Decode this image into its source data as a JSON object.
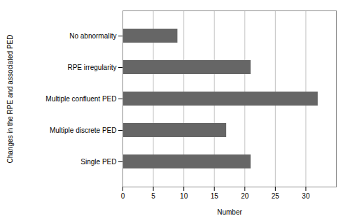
{
  "chart_data": {
    "type": "bar",
    "orientation": "horizontal",
    "categories": [
      "Single PED",
      "Multiple discrete PED",
      "Multiple confluent PED",
      "RPE irregularity",
      "No abnormality"
    ],
    "values": [
      21,
      17,
      32,
      21,
      9
    ],
    "color": "#666666",
    "xlabel": "Number",
    "ylabel": "Changes in the RPE and associated PED",
    "xlim": [
      0,
      35
    ],
    "xticks": [
      0,
      5,
      10,
      15,
      20,
      25,
      30
    ],
    "grid": true
  }
}
